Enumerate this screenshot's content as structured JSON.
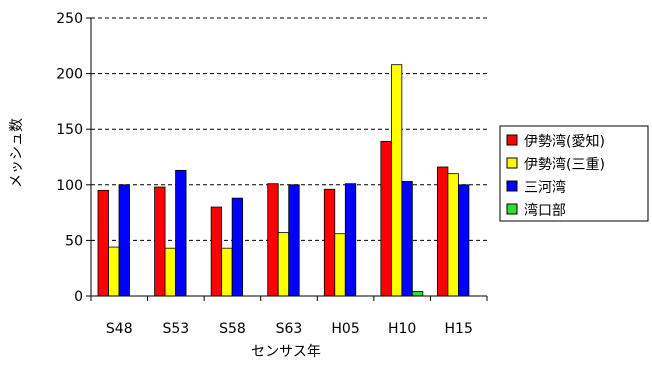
{
  "chart_data": {
    "type": "bar",
    "title": "",
    "xlabel": "センサス年",
    "ylabel": "メッシュ数",
    "ylim": [
      0,
      250
    ],
    "yticks": [
      0,
      50,
      100,
      150,
      200,
      250
    ],
    "grid": "horizontal dashed",
    "legend_position": "right",
    "categories": [
      "S48",
      "S53",
      "S58",
      "S63",
      "H05",
      "H10",
      "H15"
    ],
    "series": [
      {
        "name": "伊勢湾(愛知)",
        "color": "#ff0000",
        "values": [
          95,
          98,
          80,
          101,
          96,
          139,
          116
        ]
      },
      {
        "name": "伊勢湾(三重)",
        "color": "#ffff00",
        "values": [
          44,
          43,
          43,
          57,
          56,
          208,
          110
        ]
      },
      {
        "name": "三河湾",
        "color": "#0000ff",
        "values": [
          100,
          113,
          88,
          100,
          101,
          103,
          100
        ]
      },
      {
        "name": "湾口部",
        "color": "#33dd33",
        "values": [
          0,
          0,
          0,
          0,
          0,
          4,
          0
        ]
      }
    ]
  }
}
